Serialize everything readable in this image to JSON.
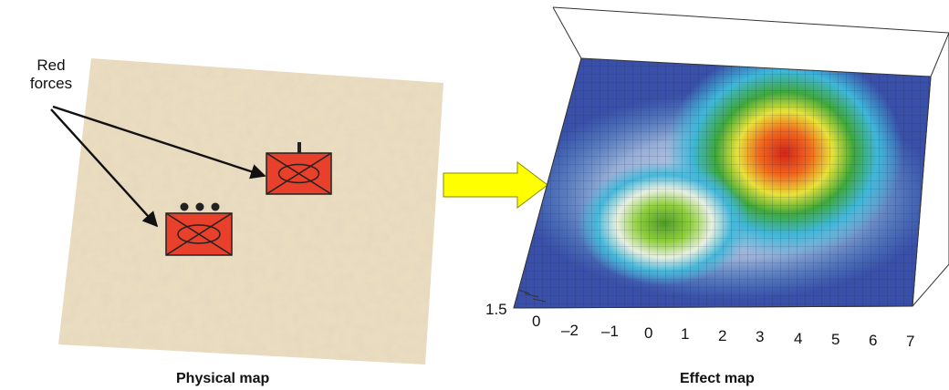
{
  "physical_map": {
    "caption": "Physical map",
    "annotation_line1": "Red",
    "annotation_line2": "forces",
    "unit_colors": {
      "fill": "#e8402a",
      "stroke": "#222222"
    }
  },
  "arrow": {
    "color": "#ffff00",
    "stroke": "#8a8a00"
  },
  "effect_map": {
    "caption": "Effect map",
    "z_tick": "1.5",
    "z_tick_zero": "0",
    "x_ticks": [
      "–2",
      "–1",
      "0",
      "1",
      "2",
      "3",
      "4",
      "5",
      "6",
      "7"
    ],
    "surface_colors": {
      "low": "#3a4fa8",
      "mid": "#3fb7d9",
      "high": "#e02a1c"
    }
  }
}
